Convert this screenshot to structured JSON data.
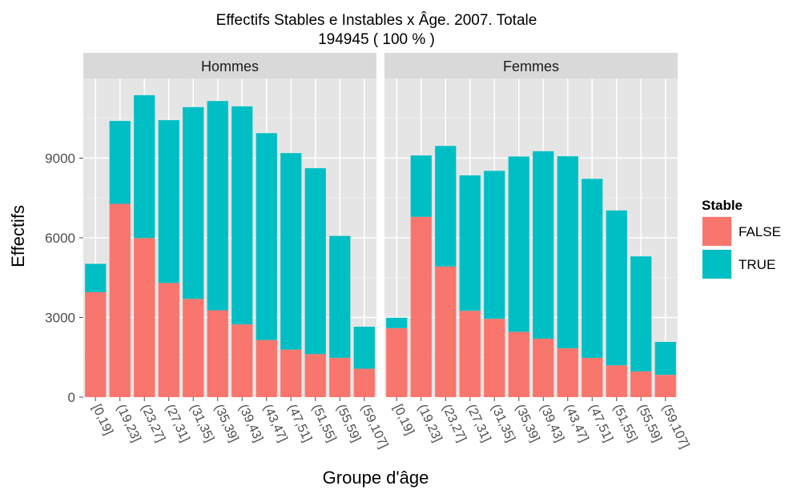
{
  "chart_data": {
    "type": "bar",
    "stacked": true,
    "title_line1": "Effectifs Stables e Instables x Âge. 2007. Totale",
    "title_line2": "194945 ( 100 % )",
    "xlabel": "Groupe d'âge",
    "ylabel": "Effectifs",
    "ylim": [
      0,
      12000
    ],
    "yticks": [
      0,
      3000,
      6000,
      9000
    ],
    "ytick_labels": [
      "0",
      "3000",
      "6000",
      "9000"
    ],
    "categories": [
      "[0,19]",
      "(19,23]",
      "(23,27]",
      "(27,31]",
      "(31,35]",
      "(35,39]",
      "(39,43]",
      "(43,47]",
      "(47,51]",
      "(51,55]",
      "(55,59]",
      "(59,107]"
    ],
    "legend": {
      "title": "Stable",
      "position": "right",
      "items": [
        {
          "label": "FALSE",
          "color": "#F8766D"
        },
        {
          "label": "TRUE",
          "color": "#00BFC4"
        }
      ]
    },
    "panels": [
      {
        "label": "Hommes",
        "series": [
          {
            "name": "FALSE",
            "values": [
              3950,
              7280,
              5990,
              4300,
              3700,
              3270,
              2740,
              2150,
              1790,
              1620,
              1480,
              1070
            ]
          },
          {
            "name": "TRUE",
            "values": [
              1070,
              3120,
              5380,
              6130,
              7220,
              7880,
              8210,
              7790,
              7400,
              7000,
              4590,
              1580
            ]
          }
        ]
      },
      {
        "label": "Femmes",
        "series": [
          {
            "name": "FALSE",
            "values": [
              2600,
              6790,
              4920,
              3250,
              2950,
              2460,
              2200,
              1840,
              1480,
              1200,
              970,
              840
            ]
          },
          {
            "name": "TRUE",
            "values": [
              390,
              2310,
              4540,
              5100,
              5570,
              6600,
              7060,
              7230,
              6740,
              5830,
              4330,
              1240
            ]
          }
        ]
      }
    ],
    "grid": true
  }
}
